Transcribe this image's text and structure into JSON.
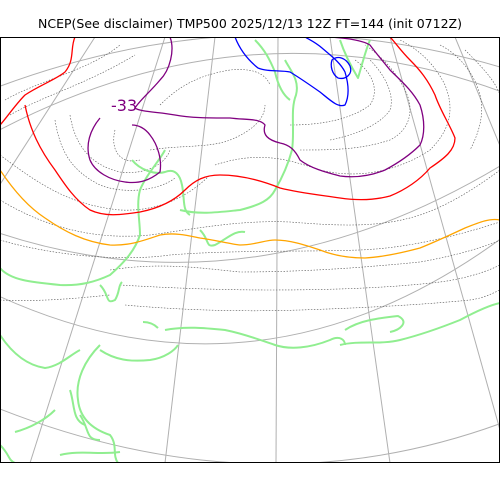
{
  "title": "NCEP(See disclaimer) TMP500 2025/12/13 12Z FT=144 (init 0712Z)",
  "contour_labels": [
    {
      "text": "-33",
      "color": "#800080"
    }
  ],
  "colors": {
    "graticule": "#b0b0b0",
    "coastline": "#90ee90",
    "isotherm_fine": "#555555",
    "isotherm_red": "#ff0000",
    "isotherm_orange": "#ffa500",
    "isotherm_purple": "#800080",
    "isotherm_blue": "#0000ff"
  }
}
